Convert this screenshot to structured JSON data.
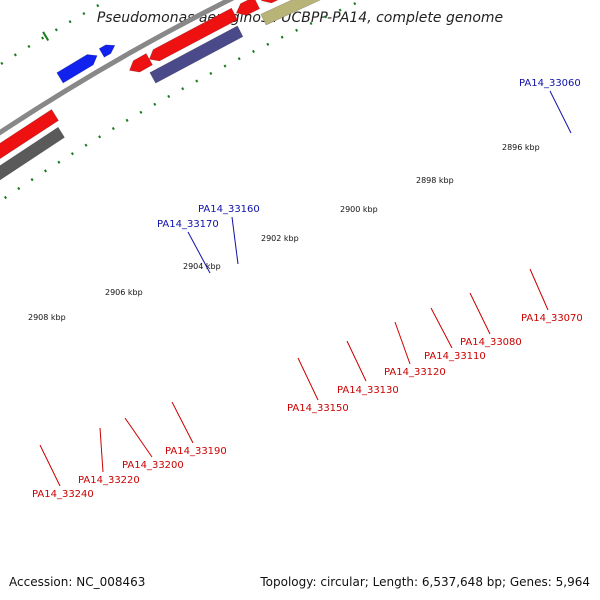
{
  "header": {
    "title": "Pseudomonas aeruginosa UCBPP-PA14, complete genome"
  },
  "footer": {
    "accession": "Accession: NC_008463",
    "topology": "Topology: circular; Length: 6,537,648 bp; Genes: 5,964"
  },
  "scale": {
    "ticks": [
      "2896 kbp",
      "2898 kbp",
      "2900 kbp",
      "2902 kbp",
      "2904 kbp",
      "2906 kbp",
      "2908 kbp"
    ]
  },
  "colors": {
    "red": "#ee1111",
    "blue": "#1122ee",
    "gray": "#5a5a5a",
    "olive": "#b8b478",
    "navy": "#4a4a8a",
    "teal": "#22ee99",
    "backbone": "#888888",
    "tick": "#1b7a1b",
    "label_red": "#cc0000",
    "label_blue": "#1111aa"
  },
  "gene_labels": [
    {
      "name": "PA14_33060",
      "color": "blue"
    },
    {
      "name": "PA14_33160",
      "color": "blue"
    },
    {
      "name": "PA14_33170",
      "color": "blue"
    },
    {
      "name": "PA14_33070",
      "color": "red"
    },
    {
      "name": "PA14_33080",
      "color": "red"
    },
    {
      "name": "PA14_33110",
      "color": "red"
    },
    {
      "name": "PA14_33120",
      "color": "red"
    },
    {
      "name": "PA14_33130",
      "color": "red"
    },
    {
      "name": "PA14_33150",
      "color": "red"
    },
    {
      "name": "PA14_33190",
      "color": "red"
    },
    {
      "name": "PA14_33200",
      "color": "red"
    },
    {
      "name": "PA14_33220",
      "color": "red"
    },
    {
      "name": "PA14_33240",
      "color": "red"
    }
  ]
}
